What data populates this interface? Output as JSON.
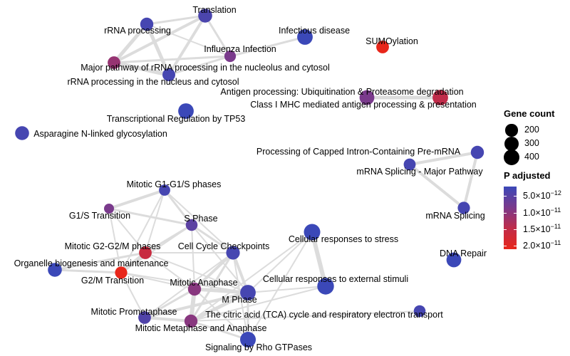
{
  "colors": {
    "low_p": "#3b48b8",
    "high_p": "#e8261a",
    "edge": "#dcdcdc"
  },
  "nodes": [
    {
      "id": "translation",
      "label": "Translation",
      "count": 290,
      "padj": 5.5e-12
    },
    {
      "id": "rrna_processing",
      "label": "rRNA processing",
      "count": 240,
      "padj": 5e-12
    },
    {
      "id": "influenza",
      "label": "Influenza Infection",
      "count": 170,
      "padj": 1e-11
    },
    {
      "id": "major_rrna",
      "label": "Major pathway of rRNA processing in the nucleolus and cytosol",
      "count": 220,
      "padj": 1.2e-11
    },
    {
      "id": "rrna_nucleus",
      "label": "rRNA processing in the nucleus and cytosol",
      "count": 230,
      "padj": 5e-12
    },
    {
      "id": "infectious",
      "label": "Infectious disease",
      "count": 380,
      "padj": 4e-12
    },
    {
      "id": "sumoylation",
      "label": "SUMOylation",
      "count": 220,
      "padj": 2e-11
    },
    {
      "id": "antigen_ubiq",
      "label": "Antigen processing: Ubiquitination & Proteasome degradation",
      "count": 340,
      "padj": 1e-11
    },
    {
      "id": "class1_mhc",
      "label": "Class I MHC mediated antigen processing & presentation",
      "count": 380,
      "padj": 1.5e-11
    },
    {
      "id": "tp53",
      "label": "Transcriptional Regulation by TP53",
      "count": 380,
      "padj": 4e-12
    },
    {
      "id": "asparagine",
      "label": "Asparagine N-linked glycosylation",
      "count": 290,
      "padj": 5e-12
    },
    {
      "id": "capped",
      "label": "Processing of Capped Intron-Containing Pre-mRNA",
      "count": 240,
      "padj": 5e-12
    },
    {
      "id": "mrna_major",
      "label": "mRNA Splicing - Major Pathway",
      "count": 190,
      "padj": 5e-12
    },
    {
      "id": "mrna_splicing",
      "label": "mRNA Splicing",
      "count": 200,
      "padj": 5e-12
    },
    {
      "id": "g1_g1s",
      "label": "Mitotic G1-G1/S phases",
      "count": 160,
      "padj": 5e-12
    },
    {
      "id": "g1s",
      "label": "G1/S Transition",
      "count": 110,
      "padj": 1e-11
    },
    {
      "id": "sphase",
      "label": "S Phase",
      "count": 180,
      "padj": 7e-12
    },
    {
      "id": "g2m_phases",
      "label": "Mitotic G2-G2/M phases",
      "count": 220,
      "padj": 1.6e-11
    },
    {
      "id": "checkpoints",
      "label": "Cell Cycle Checkpoints",
      "count": 270,
      "padj": 5e-12
    },
    {
      "id": "stress",
      "label": "Cellular responses to stress",
      "count": 440,
      "padj": 4e-12
    },
    {
      "id": "organelle",
      "label": "Organelle biogenesis and maintenance",
      "count": 290,
      "padj": 4e-12
    },
    {
      "id": "g2m_transition",
      "label": "G2/M Transition",
      "count": 200,
      "padj": 2e-11
    },
    {
      "id": "anaphase",
      "label": "Mitotic Anaphase",
      "count": 240,
      "padj": 1.1e-11
    },
    {
      "id": "external",
      "label": "Cellular responses to external stimuli",
      "count": 460,
      "padj": 4e-12
    },
    {
      "id": "mphase",
      "label": "M Phase",
      "count": 380,
      "padj": 5e-12
    },
    {
      "id": "dna_repair",
      "label": "DNA Repair",
      "count": 340,
      "padj": 4e-12
    },
    {
      "id": "prometaphase",
      "label": "Mitotic Prometaphase",
      "count": 220,
      "padj": 6e-12
    },
    {
      "id": "tca",
      "label": "The citric acid (TCA) cycle and respiratory electron transport",
      "count": 180,
      "padj": 5e-12
    },
    {
      "id": "metaphase",
      "label": "Mitotic Metaphase and Anaphase",
      "count": 240,
      "padj": 1.1e-11
    },
    {
      "id": "rho",
      "label": "Signaling by Rho GTPases",
      "count": 390,
      "padj": 4e-12
    }
  ],
  "edges": [
    [
      "translation",
      "rrna_processing",
      3
    ],
    [
      "translation",
      "influenza",
      3
    ],
    [
      "translation",
      "major_rrna",
      4
    ],
    [
      "translation",
      "rrna_nucleus",
      4
    ],
    [
      "rrna_processing",
      "major_rrna",
      5
    ],
    [
      "rrna_processing",
      "rrna_nucleus",
      5
    ],
    [
      "rrna_processing",
      "influenza",
      2
    ],
    [
      "influenza",
      "major_rrna",
      3
    ],
    [
      "influenza",
      "rrna_nucleus",
      3
    ],
    [
      "major_rrna",
      "rrna_nucleus",
      6
    ],
    [
      "influenza",
      "infectious",
      3
    ],
    [
      "antigen_ubiq",
      "class1_mhc",
      5
    ],
    [
      "capped",
      "mrna_major",
      4
    ],
    [
      "capped",
      "mrna_splicing",
      4
    ],
    [
      "mrna_major",
      "mrna_splicing",
      4
    ],
    [
      "g1_g1s",
      "g1s",
      4
    ],
    [
      "g1_g1s",
      "sphase",
      3
    ],
    [
      "g1_g1s",
      "checkpoints",
      2
    ],
    [
      "g1_g1s",
      "g2m_transition",
      2
    ],
    [
      "g1_g1s",
      "g2m_phases",
      2
    ],
    [
      "g1s",
      "sphase",
      3
    ],
    [
      "g1s",
      "g2m_phases",
      2
    ],
    [
      "g1s",
      "g2m_transition",
      2
    ],
    [
      "sphase",
      "checkpoints",
      3
    ],
    [
      "sphase",
      "g2m_phases",
      3
    ],
    [
      "sphase",
      "anaphase",
      2
    ],
    [
      "sphase",
      "mphase",
      2
    ],
    [
      "sphase",
      "g2m_transition",
      2
    ],
    [
      "g2m_phases",
      "g2m_transition",
      5
    ],
    [
      "g2m_phases",
      "organelle",
      3
    ],
    [
      "g2m_phases",
      "checkpoints",
      2
    ],
    [
      "g2m_phases",
      "anaphase",
      2
    ],
    [
      "g2m_phases",
      "mphase",
      2
    ],
    [
      "organelle",
      "g2m_transition",
      3
    ],
    [
      "g2m_transition",
      "anaphase",
      2
    ],
    [
      "g2m_transition",
      "mphase",
      2
    ],
    [
      "g2m_transition",
      "prometaphase",
      2
    ],
    [
      "checkpoints",
      "anaphase",
      4
    ],
    [
      "checkpoints",
      "mphase",
      4
    ],
    [
      "checkpoints",
      "metaphase",
      3
    ],
    [
      "checkpoints",
      "prometaphase",
      2
    ],
    [
      "checkpoints",
      "rho",
      2
    ],
    [
      "anaphase",
      "mphase",
      5
    ],
    [
      "anaphase",
      "metaphase",
      6
    ],
    [
      "anaphase",
      "prometaphase",
      3
    ],
    [
      "anaphase",
      "rho",
      2
    ],
    [
      "mphase",
      "metaphase",
      5
    ],
    [
      "mphase",
      "prometaphase",
      4
    ],
    [
      "mphase",
      "rho",
      3
    ],
    [
      "mphase",
      "external",
      2
    ],
    [
      "metaphase",
      "prometaphase",
      4
    ],
    [
      "metaphase",
      "rho",
      3
    ],
    [
      "stress",
      "external",
      6
    ],
    [
      "stress",
      "mphase",
      2
    ],
    [
      "stress",
      "rho",
      2
    ],
    [
      "stress",
      "metaphase",
      2
    ],
    [
      "external",
      "metaphase",
      2
    ],
    [
      "tca",
      "metaphase",
      2
    ]
  ],
  "legend": {
    "size_title": "Gene count",
    "size_items": [
      {
        "label": "200",
        "value": 200
      },
      {
        "label": "300",
        "value": 300
      },
      {
        "label": "400",
        "value": 400
      }
    ],
    "color_title": "P adjusted",
    "color_ticks": [
      {
        "mantissa": "5.0",
        "exponent": "−12",
        "value": 5e-12
      },
      {
        "mantissa": "1.0",
        "exponent": "−11",
        "value": 1e-11
      },
      {
        "mantissa": "1.5",
        "exponent": "−11",
        "value": 1.5e-11
      },
      {
        "mantissa": "2.0",
        "exponent": "−11",
        "value": 2e-11
      }
    ]
  }
}
